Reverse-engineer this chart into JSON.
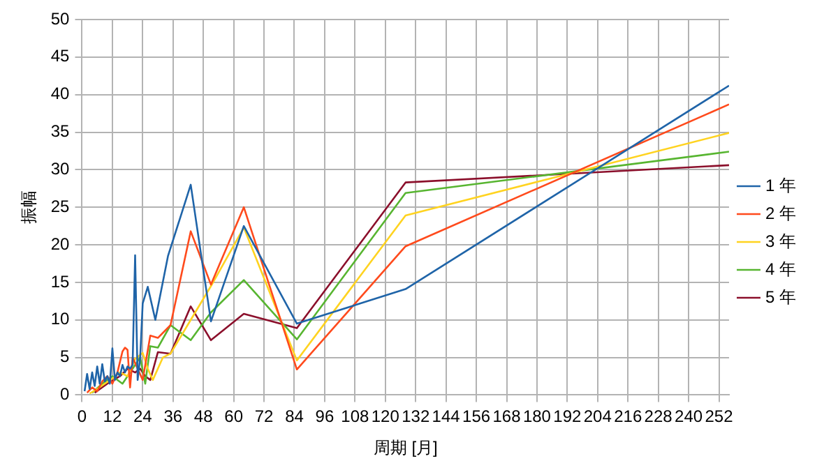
{
  "chart_data": {
    "type": "line",
    "xlabel": "周期 [月]",
    "ylabel": "振幅",
    "xlim": [
      0,
      256
    ],
    "xticks": [
      0,
      12,
      24,
      36,
      48,
      60,
      72,
      84,
      96,
      108,
      120,
      132,
      144,
      156,
      168,
      180,
      192,
      204,
      216,
      228,
      240,
      252
    ],
    "ylim": [
      0,
      50
    ],
    "yticks": [
      0,
      5,
      10,
      15,
      20,
      25,
      30,
      35,
      40,
      45,
      50
    ],
    "grid": true,
    "legend": "right",
    "marker": "none",
    "line_style": "solid",
    "series": [
      {
        "name": "1 年",
        "color": "#1f64a8",
        "x": [
          1,
          2,
          3,
          4,
          5,
          6,
          7,
          8,
          9,
          10,
          11,
          12,
          13,
          14,
          15,
          16,
          17,
          18,
          19,
          20,
          21,
          22,
          23,
          24,
          26,
          29,
          34,
          43,
          51,
          64,
          85,
          128,
          256
        ],
        "values": [
          0.5,
          2.8,
          0.8,
          3,
          1.2,
          3.8,
          1.5,
          4.1,
          1.8,
          2.5,
          1.5,
          6.2,
          2,
          3,
          2.5,
          4,
          3,
          3.8,
          3.5,
          4,
          18.6,
          2,
          5,
          12.2,
          14.4,
          10,
          18.5,
          28,
          9.8,
          22.5,
          9.5,
          14.1,
          41.2
        ]
      },
      {
        "name": "2 年",
        "color": "#ff4a1c",
        "x": [
          2,
          4,
          6,
          8,
          10,
          12,
          14,
          16,
          17,
          18,
          19,
          20,
          22,
          24,
          27,
          30,
          35,
          43,
          51,
          64,
          85,
          128,
          256
        ],
        "values": [
          0.3,
          1,
          0.5,
          1.8,
          2.5,
          1.5,
          3,
          5.8,
          6.3,
          6,
          1,
          5,
          3.5,
          2,
          7.9,
          7.6,
          9.3,
          21.8,
          14.7,
          25,
          3.4,
          19.8,
          38.7
        ]
      },
      {
        "name": "3 年",
        "color": "#ffd320",
        "x": [
          3,
          6,
          9,
          12,
          15,
          18,
          21,
          24,
          26,
          28,
          32,
          35,
          43,
          51,
          64,
          85,
          128,
          256
        ],
        "values": [
          0.2,
          0.8,
          1.5,
          2.2,
          3,
          2.5,
          4.8,
          5.6,
          3.5,
          2,
          5,
          5.5,
          10,
          14.5,
          22.3,
          4.6,
          23.9,
          34.9
        ]
      },
      {
        "name": "4 年",
        "color": "#57b530",
        "x": [
          4,
          8,
          12,
          16,
          20,
          23,
          25,
          27,
          30,
          35,
          43,
          51,
          64,
          85,
          128,
          256
        ],
        "values": [
          0.3,
          1.5,
          2.5,
          1.5,
          3.5,
          5,
          1.5,
          6.5,
          6.3,
          9.3,
          7.3,
          11,
          15.3,
          7.4,
          26.9,
          32.4
        ]
      },
      {
        "name": "5 年",
        "color": "#8b0f2b",
        "x": [
          5,
          10,
          15,
          18,
          21,
          23,
          25,
          27,
          30,
          35,
          43,
          51,
          64,
          85,
          128,
          256
        ],
        "values": [
          0.3,
          1.5,
          2.5,
          3.5,
          3,
          3.5,
          2.5,
          2,
          5.7,
          5.5,
          11.8,
          7.3,
          10.8,
          8.9,
          28.3,
          30.6
        ]
      }
    ]
  }
}
